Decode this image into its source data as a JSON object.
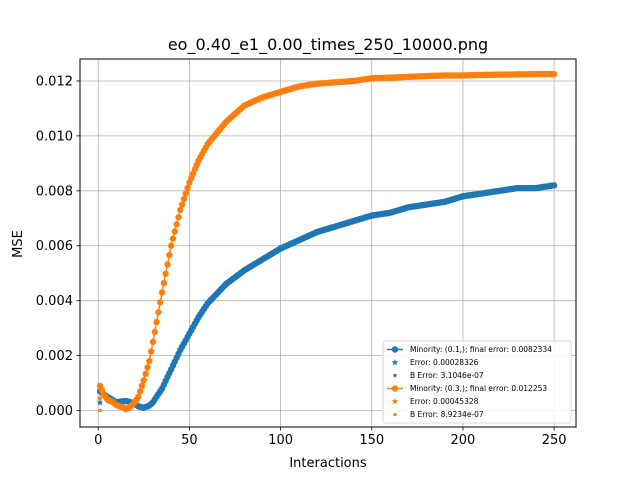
{
  "chart_data": {
    "type": "scatter",
    "title": "eo_0.40_e1_0.00_times_250_10000.png",
    "xlabel": "Interactions",
    "ylabel": "MSE",
    "xlim": [
      -10,
      262
    ],
    "ylim": [
      -0.0006,
      0.0128
    ],
    "xticks": [
      0,
      50,
      100,
      150,
      200,
      250
    ],
    "xtick_labels": [
      "0",
      "50",
      "100",
      "150",
      "200",
      "250"
    ],
    "yticks": [
      0.0,
      0.002,
      0.004,
      0.006,
      0.008,
      0.01,
      0.012
    ],
    "ytick_labels": [
      "0.000",
      "0.002",
      "0.004",
      "0.006",
      "0.008",
      "0.010",
      "0.012"
    ],
    "grid": true,
    "legend_position": "lower-right",
    "series": [
      {
        "name": "Minority: (0.1,); final error: 0.0082334",
        "color": "#1f77b4",
        "marker": "circle-line",
        "x": [
          1,
          5,
          10,
          15,
          18,
          20,
          22,
          25,
          28,
          30,
          35,
          40,
          45,
          50,
          55,
          60,
          70,
          80,
          90,
          100,
          110,
          120,
          130,
          140,
          150,
          160,
          170,
          180,
          190,
          200,
          210,
          220,
          230,
          240,
          250
        ],
        "y": [
          0.0007,
          0.0005,
          0.0003,
          0.00035,
          0.0003,
          0.00025,
          0.00015,
          0.0001,
          0.00018,
          0.0003,
          0.0008,
          0.0015,
          0.0022,
          0.0028,
          0.0034,
          0.0039,
          0.0046,
          0.0051,
          0.0055,
          0.0059,
          0.0062,
          0.0065,
          0.0067,
          0.0069,
          0.0071,
          0.0072,
          0.0074,
          0.0075,
          0.0076,
          0.0078,
          0.0079,
          0.008,
          0.0081,
          0.0081,
          0.0082
        ]
      },
      {
        "name": "Minority: (0.3,); final error: 0.012253",
        "color": "#ff7f0e",
        "marker": "circle-line",
        "x": [
          1,
          3,
          5,
          8,
          10,
          12,
          14,
          15,
          17,
          20,
          22,
          25,
          28,
          30,
          35,
          40,
          45,
          50,
          55,
          60,
          70,
          80,
          90,
          100,
          110,
          120,
          130,
          140,
          150,
          160,
          170,
          180,
          190,
          200,
          210,
          220,
          230,
          240,
          250
        ],
        "y": [
          0.0009,
          0.0006,
          0.0004,
          0.0003,
          0.0002,
          0.00015,
          0.0001,
          5e-05,
          0.0001,
          0.0003,
          0.0005,
          0.0011,
          0.0018,
          0.0025,
          0.0043,
          0.006,
          0.0073,
          0.0083,
          0.0091,
          0.0097,
          0.0105,
          0.0111,
          0.0114,
          0.0116,
          0.0118,
          0.0119,
          0.01195,
          0.012,
          0.0121,
          0.01212,
          0.01215,
          0.01218,
          0.0122,
          0.0122,
          0.01222,
          0.01223,
          0.01224,
          0.01225,
          0.01225
        ]
      }
    ],
    "points": [
      {
        "name": "Error: 0.00028326",
        "color": "#1f77b4",
        "marker": "star",
        "x": 1,
        "y": 0.00028326
      },
      {
        "name": "B Error: 3.1046e-07",
        "color": "#1f77b4",
        "marker": "small-dot",
        "x": 1,
        "y": 3.1046e-07
      },
      {
        "name": "Error: 0.00045328",
        "color": "#ff7f0e",
        "marker": "star",
        "x": 1,
        "y": 0.00045328
      },
      {
        "name": "B Error: 8.9234e-07",
        "color": "#ff7f0e",
        "marker": "small-dot",
        "x": 1,
        "y": 8.9234e-07
      }
    ],
    "legend": [
      {
        "label": "Minority: (0.1,); final error: 0.0082334",
        "color": "#1f77b4",
        "marker": "circle-line"
      },
      {
        "label": "Error: 0.00028326",
        "color": "#1f77b4",
        "marker": "star"
      },
      {
        "label": "B Error: 3.1046e-07",
        "color": "#1f77b4",
        "marker": "small-dot"
      },
      {
        "label": "Minority: (0.3,); final error: 0.012253",
        "color": "#ff7f0e",
        "marker": "circle-line"
      },
      {
        "label": "Error: 0.00045328",
        "color": "#ff7f0e",
        "marker": "star"
      },
      {
        "label": "B Error: 8.9234e-07",
        "color": "#ff7f0e",
        "marker": "small-dot"
      }
    ]
  }
}
